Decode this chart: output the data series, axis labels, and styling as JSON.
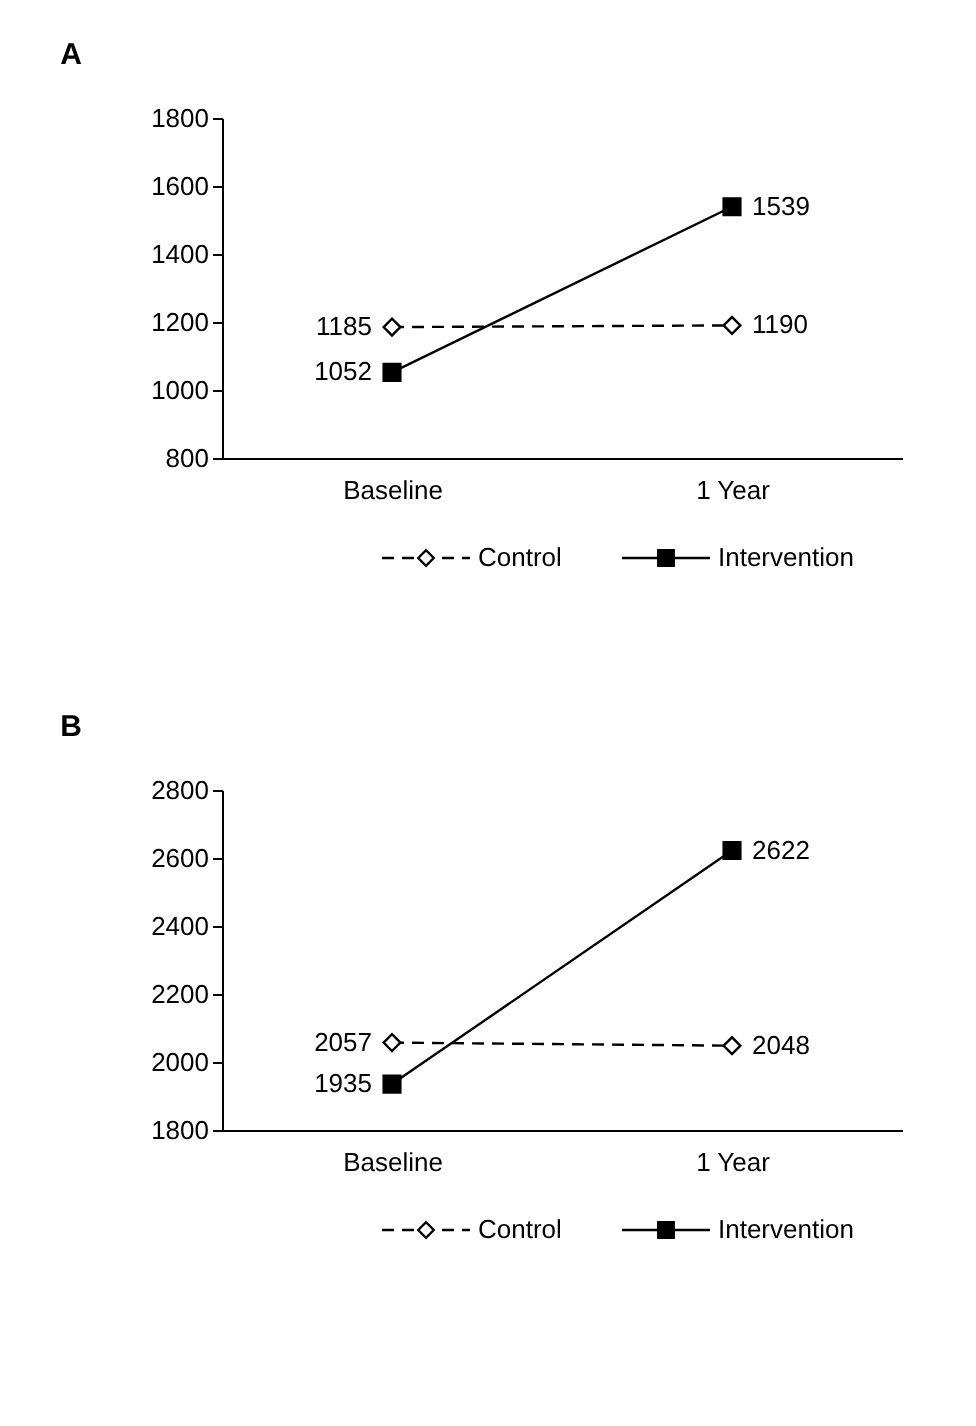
{
  "chart_data": [
    {
      "type": "line",
      "title": "A",
      "categories": [
        "Baseline",
        "1 Year"
      ],
      "ylim": [
        800,
        1800
      ],
      "yticks": [
        800,
        1000,
        1200,
        1400,
        1600,
        1800
      ],
      "grid": false,
      "legend": "bottom",
      "data_labels": true,
      "series": [
        {
          "name": "Control",
          "color": "#000000",
          "values": [
            1185,
            1190
          ],
          "line_style": "dashed",
          "marker": "diamond"
        },
        {
          "name": "Intervention",
          "color": "#000000",
          "values": [
            1052,
            1539
          ],
          "line_style": "solid",
          "marker": "square"
        }
      ]
    },
    {
      "type": "line",
      "title": "B",
      "categories": [
        "Baseline",
        "1 Year"
      ],
      "ylim": [
        1800,
        2800
      ],
      "yticks": [
        1800,
        2000,
        2200,
        2400,
        2600,
        2800
      ],
      "grid": false,
      "legend": "bottom",
      "data_labels": true,
      "series": [
        {
          "name": "Control",
          "color": "#000000",
          "values": [
            2057,
            2048
          ],
          "line_style": "dashed",
          "marker": "diamond"
        },
        {
          "name": "Intervention",
          "color": "#000000",
          "values": [
            1935,
            2622
          ],
          "line_style": "solid",
          "marker": "square"
        }
      ]
    }
  ]
}
